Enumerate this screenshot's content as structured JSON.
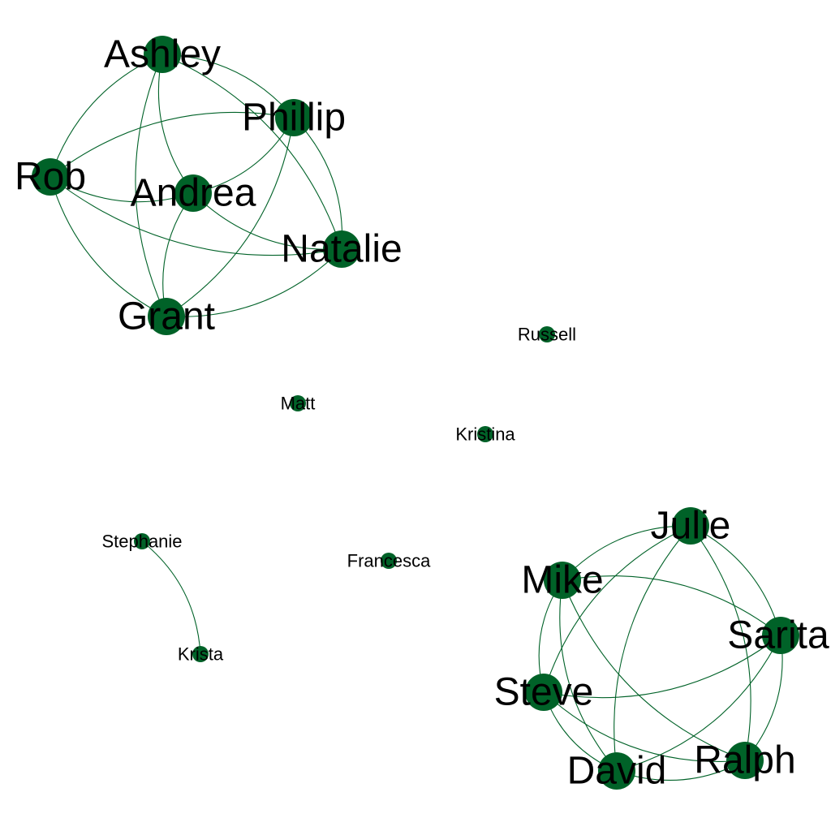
{
  "colors": {
    "node": "#006228",
    "edge": "#006228",
    "label": "#000000"
  },
  "nodes": [
    {
      "id": "ashley",
      "label": "Ashley"
    },
    {
      "id": "phillip",
      "label": "Phillip"
    },
    {
      "id": "rob",
      "label": "Rob"
    },
    {
      "id": "andrea",
      "label": "Andrea"
    },
    {
      "id": "natalie",
      "label": "Natalie"
    },
    {
      "id": "grant",
      "label": "Grant"
    },
    {
      "id": "russell",
      "label": "Russell"
    },
    {
      "id": "matt",
      "label": "Matt"
    },
    {
      "id": "kristina",
      "label": "Kristina"
    },
    {
      "id": "stephanie",
      "label": "Stephanie"
    },
    {
      "id": "francesca",
      "label": "Francesca"
    },
    {
      "id": "krista",
      "label": "Krista"
    },
    {
      "id": "julie",
      "label": "Julie"
    },
    {
      "id": "mike",
      "label": "Mike"
    },
    {
      "id": "sarita",
      "label": "Sarita"
    },
    {
      "id": "steve",
      "label": "Steve"
    },
    {
      "id": "david",
      "label": "David"
    },
    {
      "id": "ralph",
      "label": "Ralph"
    }
  ],
  "edges": [
    [
      "ashley",
      "phillip"
    ],
    [
      "ashley",
      "rob"
    ],
    [
      "ashley",
      "andrea"
    ],
    [
      "ashley",
      "natalie"
    ],
    [
      "ashley",
      "grant"
    ],
    [
      "phillip",
      "rob"
    ],
    [
      "phillip",
      "andrea"
    ],
    [
      "phillip",
      "natalie"
    ],
    [
      "phillip",
      "grant"
    ],
    [
      "rob",
      "andrea"
    ],
    [
      "rob",
      "natalie"
    ],
    [
      "rob",
      "grant"
    ],
    [
      "andrea",
      "natalie"
    ],
    [
      "andrea",
      "grant"
    ],
    [
      "natalie",
      "grant"
    ],
    [
      "stephanie",
      "krista"
    ],
    [
      "julie",
      "mike"
    ],
    [
      "julie",
      "sarita"
    ],
    [
      "julie",
      "steve"
    ],
    [
      "julie",
      "david"
    ],
    [
      "julie",
      "ralph"
    ],
    [
      "mike",
      "sarita"
    ],
    [
      "mike",
      "steve"
    ],
    [
      "mike",
      "david"
    ],
    [
      "mike",
      "ralph"
    ],
    [
      "sarita",
      "steve"
    ],
    [
      "sarita",
      "david"
    ],
    [
      "sarita",
      "ralph"
    ],
    [
      "steve",
      "david"
    ],
    [
      "steve",
      "ralph"
    ],
    [
      "david",
      "ralph"
    ]
  ]
}
